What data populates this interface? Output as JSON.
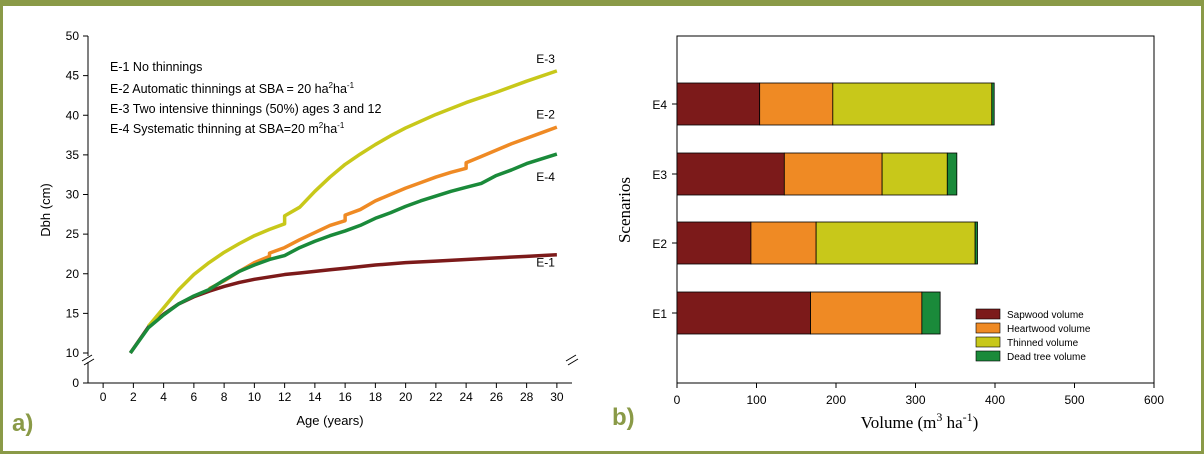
{
  "colors": {
    "border": "#8a9a47",
    "panel_letter": "#8a9a47",
    "E1": "#7c1a1a",
    "E2": "#ef8a24",
    "E3": "#c8c81a",
    "E4": "#1a8a3a"
  },
  "panel_a_letter": "a)",
  "panel_b_letter": "b)",
  "chart_data": [
    {
      "type": "line",
      "xlabel": "Age (years)",
      "ylabel": "Dbh (cm)",
      "xlim": [
        -1,
        31
      ],
      "ylim_display": [
        0,
        50
      ],
      "axis_break": "between 0 and 10",
      "xticks": [
        0,
        2,
        4,
        6,
        8,
        10,
        12,
        14,
        16,
        18,
        20,
        22,
        24,
        26,
        28,
        30
      ],
      "yticks": [
        0,
        10,
        15,
        20,
        25,
        30,
        35,
        40,
        45,
        50
      ],
      "legend": [
        {
          "id": "E-1",
          "text": "E-1 No thinnings"
        },
        {
          "id": "E-2",
          "text_pre": "E-2 Automatic thinnings at SBA = 20 ha",
          "sup1": "2",
          "mid": "ha",
          "sup2": "-1"
        },
        {
          "id": "E-3",
          "text": "E-3 Two intensive thinnings (50%) ages 3 and 12"
        },
        {
          "id": "E-4",
          "text_pre": "E-4 Systematic thinning at SBA=20 m",
          "sup1": "2",
          "mid": "ha",
          "sup2": "-1"
        }
      ],
      "series": [
        {
          "name": "E-1",
          "color": "#7c1a1a",
          "label_x": 30,
          "label_y": 20.9,
          "x": [
            1.8,
            3,
            4,
            5,
            6,
            7,
            8,
            9,
            10,
            11,
            12,
            13,
            14,
            15,
            16,
            18,
            20,
            22,
            24,
            26,
            28,
            30
          ],
          "y": [
            10,
            13.3,
            14.9,
            16.2,
            17.1,
            17.8,
            18.4,
            18.9,
            19.3,
            19.6,
            19.9,
            20.1,
            20.3,
            20.5,
            20.7,
            21.1,
            21.4,
            21.6,
            21.8,
            22,
            22.2,
            22.4
          ]
        },
        {
          "name": "E-2",
          "color": "#ef8a24",
          "label_x": 30,
          "label_y": 39.6,
          "x": [
            7,
            8,
            9,
            10,
            11,
            11,
            12,
            13,
            14,
            15,
            16,
            16,
            17,
            18,
            19,
            20,
            21,
            22,
            23,
            24,
            24,
            25,
            26,
            27,
            28,
            29,
            30
          ],
          "y": [
            18.1,
            19.1,
            20.3,
            21.4,
            22.2,
            22.6,
            23.3,
            24.3,
            25.2,
            26.1,
            26.7,
            27.4,
            28.1,
            29.2,
            30,
            30.8,
            31.5,
            32.2,
            32.8,
            33.3,
            34,
            34.8,
            35.6,
            36.4,
            37.1,
            37.8,
            38.5
          ]
        },
        {
          "name": "E-3",
          "color": "#c8c81a",
          "label_x": 30,
          "label_y": 46.6,
          "x": [
            3,
            4,
            5,
            6,
            7,
            8,
            9,
            10,
            11,
            12,
            12,
            13,
            14,
            15,
            16,
            17,
            18,
            19,
            20,
            22,
            24,
            26,
            28,
            30
          ],
          "y": [
            13.4,
            15.7,
            18,
            19.9,
            21.4,
            22.7,
            23.8,
            24.8,
            25.6,
            26.3,
            27.3,
            28.4,
            30.4,
            32.2,
            33.8,
            35.1,
            36.3,
            37.4,
            38.4,
            40.1,
            41.6,
            42.9,
            44.3,
            45.6
          ]
        },
        {
          "name": "E-4",
          "color": "#1a8a3a",
          "label_x": 30,
          "label_y": 31.7,
          "x": [
            1.8,
            3,
            4,
            5,
            6,
            7,
            8,
            9,
            10,
            11,
            12,
            13,
            14,
            15,
            16,
            17,
            18,
            19,
            20,
            21,
            22,
            23,
            24,
            25,
            26,
            27,
            28,
            29,
            30
          ],
          "y": [
            10,
            13.2,
            14.8,
            16.2,
            17.2,
            18,
            19.2,
            20.3,
            21.1,
            21.8,
            22.3,
            23.3,
            24.1,
            24.8,
            25.4,
            26.1,
            27,
            27.7,
            28.5,
            29.2,
            29.8,
            30.4,
            30.9,
            31.4,
            32.4,
            33.1,
            33.9,
            34.5,
            35.1
          ]
        }
      ]
    },
    {
      "type": "bar",
      "orientation": "horizontal",
      "stacked": true,
      "xlabel_main": "Volume (m",
      "xlabel_sup1": "3",
      "xlabel_mid": " ha",
      "xlabel_sup2": "-1",
      "xlabel_end": ")",
      "ylabel": "Scenarios",
      "xlim": [
        0,
        600
      ],
      "xticks": [
        0,
        100,
        200,
        300,
        400,
        500,
        600
      ],
      "categories": [
        "E1",
        "E2",
        "E3",
        "E4"
      ],
      "series": [
        {
          "name": "Sapwood volume",
          "color": "#7c1a1a",
          "values": [
            168,
            93,
            135,
            104
          ]
        },
        {
          "name": "Heartwood volume",
          "color": "#ef8a24",
          "values": [
            140,
            82,
            123,
            92
          ]
        },
        {
          "name": "Thinned volume",
          "color": "#c8c81a",
          "values": [
            0,
            200,
            82,
            200
          ]
        },
        {
          "name": "Dead tree volume",
          "color": "#1a8a3a",
          "values": [
            23,
            3,
            12,
            3
          ]
        }
      ],
      "legend_position": "bottom-right"
    }
  ]
}
